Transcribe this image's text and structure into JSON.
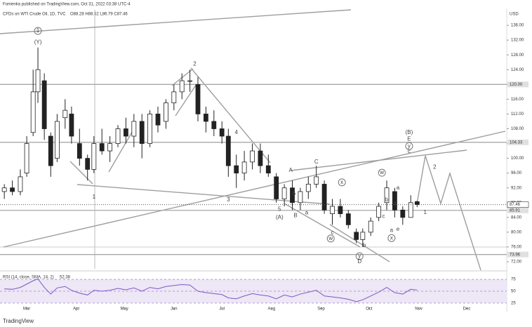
{
  "header": {
    "publisher": "Fomenka published on TradingView.com, Oct 31, 2022 03:38 UTC-4",
    "symbol": "CFDs on WTI Crude Oil, 1D, TVC",
    "ohlc": "O88.28 H88.62 L86.79 C87.46",
    "brand": "TradingView"
  },
  "chart_data": [
    {
      "type": "candlestick",
      "currency": "USD",
      "x": [
        46,
        51,
        56,
        60,
        64,
        67,
        71,
        75,
        79,
        84,
        88,
        93,
        98,
        102,
        107,
        112,
        117,
        122,
        127,
        132,
        137,
        142,
        147,
        152,
        157,
        162,
        167,
        172,
        177,
        182,
        186,
        191,
        196,
        201,
        206,
        211,
        216,
        221,
        226,
        231,
        236,
        241,
        246,
        251,
        256,
        261,
        266,
        270,
        275,
        280,
        285,
        290,
        295,
        300,
        304
      ],
      "open": [
        91,
        92,
        91,
        96,
        107,
        118,
        121,
        106,
        100,
        111,
        112,
        104,
        100,
        97,
        104,
        102,
        104,
        108,
        106,
        110,
        104,
        112,
        110,
        115,
        118,
        121,
        120,
        112,
        110,
        108,
        106,
        98,
        96,
        99,
        102,
        98,
        95,
        89,
        92,
        88,
        91,
        93,
        93,
        85,
        87,
        85,
        80,
        78,
        80,
        84,
        88,
        91,
        86,
        84,
        88.28
      ],
      "high": [
        93,
        94,
        97,
        106,
        124,
        130,
        123,
        107,
        112,
        116,
        114,
        108,
        101,
        106,
        108,
        106,
        109,
        111,
        112,
        112,
        113,
        114,
        116,
        120,
        123,
        124,
        122,
        114,
        113,
        110,
        108,
        101,
        102,
        104,
        104,
        101,
        96,
        93,
        94,
        92,
        95,
        98,
        94,
        89,
        89,
        86,
        81,
        81,
        84,
        88,
        94,
        92,
        87,
        90,
        88.62
      ],
      "low": [
        89,
        90,
        90,
        95,
        106,
        115,
        105,
        95,
        99,
        108,
        104,
        98,
        94,
        96,
        101,
        99,
        103,
        104,
        103,
        100,
        103,
        107,
        108,
        113,
        116,
        118,
        110,
        107,
        106,
        104,
        95,
        92,
        94,
        97,
        96,
        95,
        88,
        87,
        86,
        86,
        89,
        92,
        85,
        82,
        84,
        81,
        77,
        76,
        79,
        83,
        86,
        84,
        82,
        84,
        86.79
      ],
      "close": [
        92,
        91,
        95,
        104,
        118,
        124,
        108,
        98,
        110,
        113,
        106,
        100,
        97,
        104,
        102,
        104,
        108,
        106,
        110,
        104,
        112,
        109,
        115,
        118,
        121,
        121,
        112,
        110,
        108,
        106,
        98,
        96,
        99,
        102,
        98,
        96,
        89,
        92,
        88,
        91,
        93,
        95,
        86,
        87,
        85,
        82,
        78,
        80,
        83,
        87,
        92,
        86,
        84,
        88,
        87.46
      ],
      "last_price": {
        "value": 87.46,
        "label": "87.46"
      },
      "xlim": [
        43.3,
        360
      ],
      "xticks": [
        {
          "value": 60,
          "label": "Mar"
        },
        {
          "value": 91,
          "label": "Apr"
        },
        {
          "value": 121,
          "label": "May"
        },
        {
          "value": 152,
          "label": "Jun"
        },
        {
          "value": 182,
          "label": "Jul"
        },
        {
          "value": 213,
          "label": "Aug"
        },
        {
          "value": 244,
          "label": "Sep"
        },
        {
          "value": 274,
          "label": "Oct"
        },
        {
          "value": 305,
          "label": "Nov"
        },
        {
          "value": 335,
          "label": "Dec"
        }
      ],
      "ylim": [
        70.1,
        140.2
      ],
      "yticks": [
        {
          "value": 72,
          "label": "72.00"
        },
        {
          "value": 76,
          "label": "76.00"
        },
        {
          "value": 80,
          "label": "80.00"
        },
        {
          "value": 84,
          "label": "84.00"
        },
        {
          "value": 88,
          "label": "88.00"
        },
        {
          "value": 92,
          "label": "92.00"
        },
        {
          "value": 96,
          "label": "96.00"
        },
        {
          "value": 100,
          "label": "100.00"
        },
        {
          "value": 104,
          "label": "104.00"
        },
        {
          "value": 108,
          "label": "108.00"
        },
        {
          "value": 112,
          "label": "112.00"
        },
        {
          "value": 116,
          "label": "116.00"
        },
        {
          "value": 120,
          "label": "120.00"
        },
        {
          "value": 124,
          "label": "124.00"
        },
        {
          "value": 128,
          "label": "128.00"
        },
        {
          "value": 132,
          "label": "132.00"
        },
        {
          "value": 136,
          "label": "136.00"
        }
      ],
      "hlines": [
        {
          "value": 120,
          "label": "120.00"
        },
        {
          "value": 104.33,
          "label": "104.33"
        },
        {
          "value": 85.91,
          "label": "85.91"
        },
        {
          "value": 73.96,
          "label": "73.96"
        }
      ],
      "annotations": [
        {
          "text": "1",
          "x": 67,
          "y": 134.5,
          "circled": true
        },
        {
          "text": "(Y)",
          "x": 67,
          "y": 131.4
        },
        {
          "text": "2",
          "x": 165,
          "y": 125.5
        },
        {
          "text": "1",
          "x": 102,
          "y": 89.5
        },
        {
          "text": "3",
          "x": 186,
          "y": 88.7
        },
        {
          "text": "4",
          "x": 191,
          "y": 107
        },
        {
          "text": "5",
          "x": 218,
          "y": 86.2
        },
        {
          "text": "(A)",
          "x": 218,
          "y": 84
        },
        {
          "text": "A",
          "x": 225,
          "y": 96.7
        },
        {
          "text": "B",
          "x": 228,
          "y": 84.5
        },
        {
          "text": "C",
          "x": 241,
          "y": 99
        },
        {
          "text": "w",
          "x": 250,
          "y": 78.3,
          "circled": true
        },
        {
          "text": "x",
          "x": 257,
          "y": 93.5,
          "circled": true
        },
        {
          "text": "c",
          "x": 251,
          "y": 79.8
        },
        {
          "text": "w",
          "x": 282,
          "y": 96.1,
          "circled": true
        },
        {
          "text": "y",
          "x": 268,
          "y": 73.5,
          "circled": true
        },
        {
          "text": "D",
          "x": 268,
          "y": 72
        },
        {
          "text": "x",
          "x": 288,
          "y": 78.4,
          "circled": true
        },
        {
          "text": "(B)",
          "x": 299,
          "y": 107
        },
        {
          "text": "E",
          "x": 299,
          "y": 105.2
        },
        {
          "text": "y",
          "x": 299,
          "y": 103.3,
          "circled": true
        },
        {
          "text": "c",
          "x": 299,
          "y": 101.8
        },
        {
          "text": "2",
          "x": 315,
          "y": 97.6
        },
        {
          "text": "1",
          "x": 309,
          "y": 85.3
        },
        {
          "text": "a",
          "x": 292,
          "y": 92
        },
        {
          "text": "b",
          "x": 285,
          "y": 88.7
        },
        {
          "text": "c",
          "x": 283,
          "y": 84.3
        },
        {
          "text": "d",
          "x": 290,
          "y": 87.7
        },
        {
          "text": "a",
          "x": 288,
          "y": 80.5
        },
        {
          "text": "e",
          "x": 292,
          "y": 80.8
        },
        {
          "text": "b",
          "x": 227,
          "y": 90.4
        },
        {
          "text": "a",
          "x": 235,
          "y": 85.2
        },
        {
          "text": "b",
          "x": 271,
          "y": 76.4
        }
      ]
    },
    {
      "type": "line",
      "title": "RSI (14, close, SMA, 14, 2)",
      "last_label": "52.38",
      "color": "#7e57c2",
      "values": [
        55,
        54,
        58,
        65,
        72,
        76,
        58,
        44,
        57,
        60,
        52,
        46,
        42,
        52,
        50,
        52,
        56,
        53,
        57,
        50,
        58,
        55,
        60,
        62,
        64,
        63,
        50,
        47,
        45,
        43,
        36,
        34,
        40,
        45,
        42,
        40,
        34,
        42,
        38,
        44,
        48,
        52,
        40,
        38,
        36,
        33,
        28,
        32,
        40,
        48,
        58,
        47,
        44,
        54,
        52.38
      ],
      "ylim": [
        16,
        87
      ],
      "yticks": [
        75,
        50,
        25
      ]
    }
  ]
}
